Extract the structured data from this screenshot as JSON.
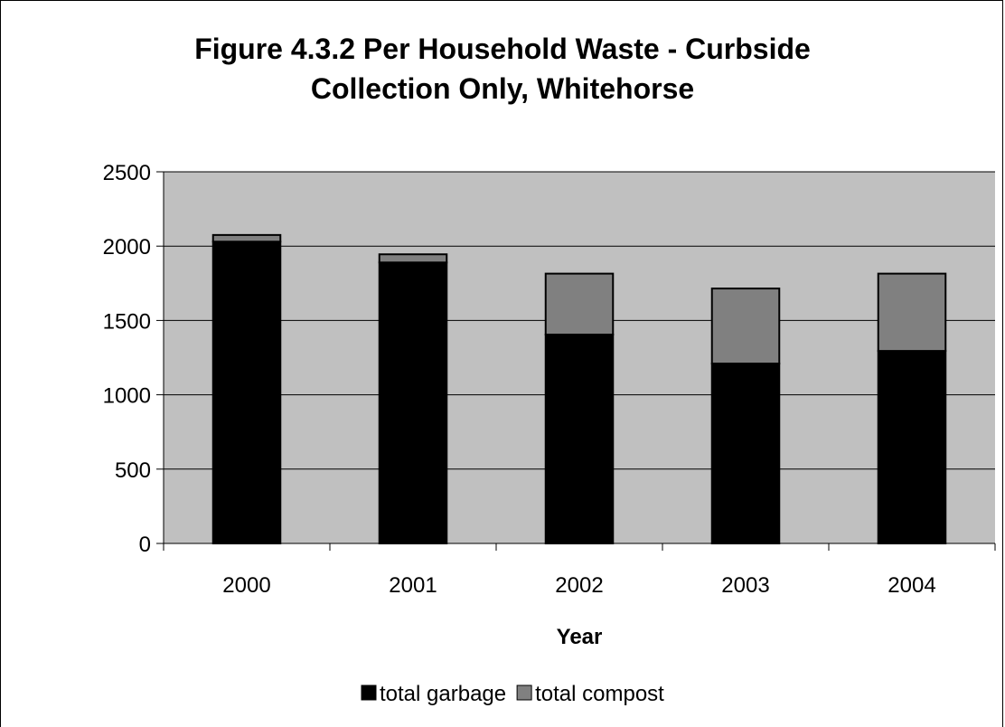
{
  "chart_data": {
    "type": "bar",
    "stacked": true,
    "title": "Figure 4.3.2 Per Household Waste - Curbside Collection Only,  Whitehorse",
    "title_lines": [
      "Figure 4.3.2 Per Household Waste - Curbside",
      "Collection Only,  Whitehorse"
    ],
    "xlabel": "Year",
    "ylabel": "",
    "categories": [
      "2000",
      "2001",
      "2002",
      "2003",
      "2004"
    ],
    "series": [
      {
        "name": "total garbage",
        "values": [
          2030,
          1890,
          1405,
          1210,
          1295
        ],
        "color": "#000000"
      },
      {
        "name": "total compost",
        "values": [
          45,
          55,
          410,
          505,
          520
        ],
        "color": "#808080"
      }
    ],
    "ylim": [
      0,
      2500
    ],
    "yticks": [
      0,
      500,
      1000,
      1500,
      2000,
      2500
    ],
    "grid": true,
    "legend": "bottom",
    "plot_background": "#c0c0c0"
  }
}
